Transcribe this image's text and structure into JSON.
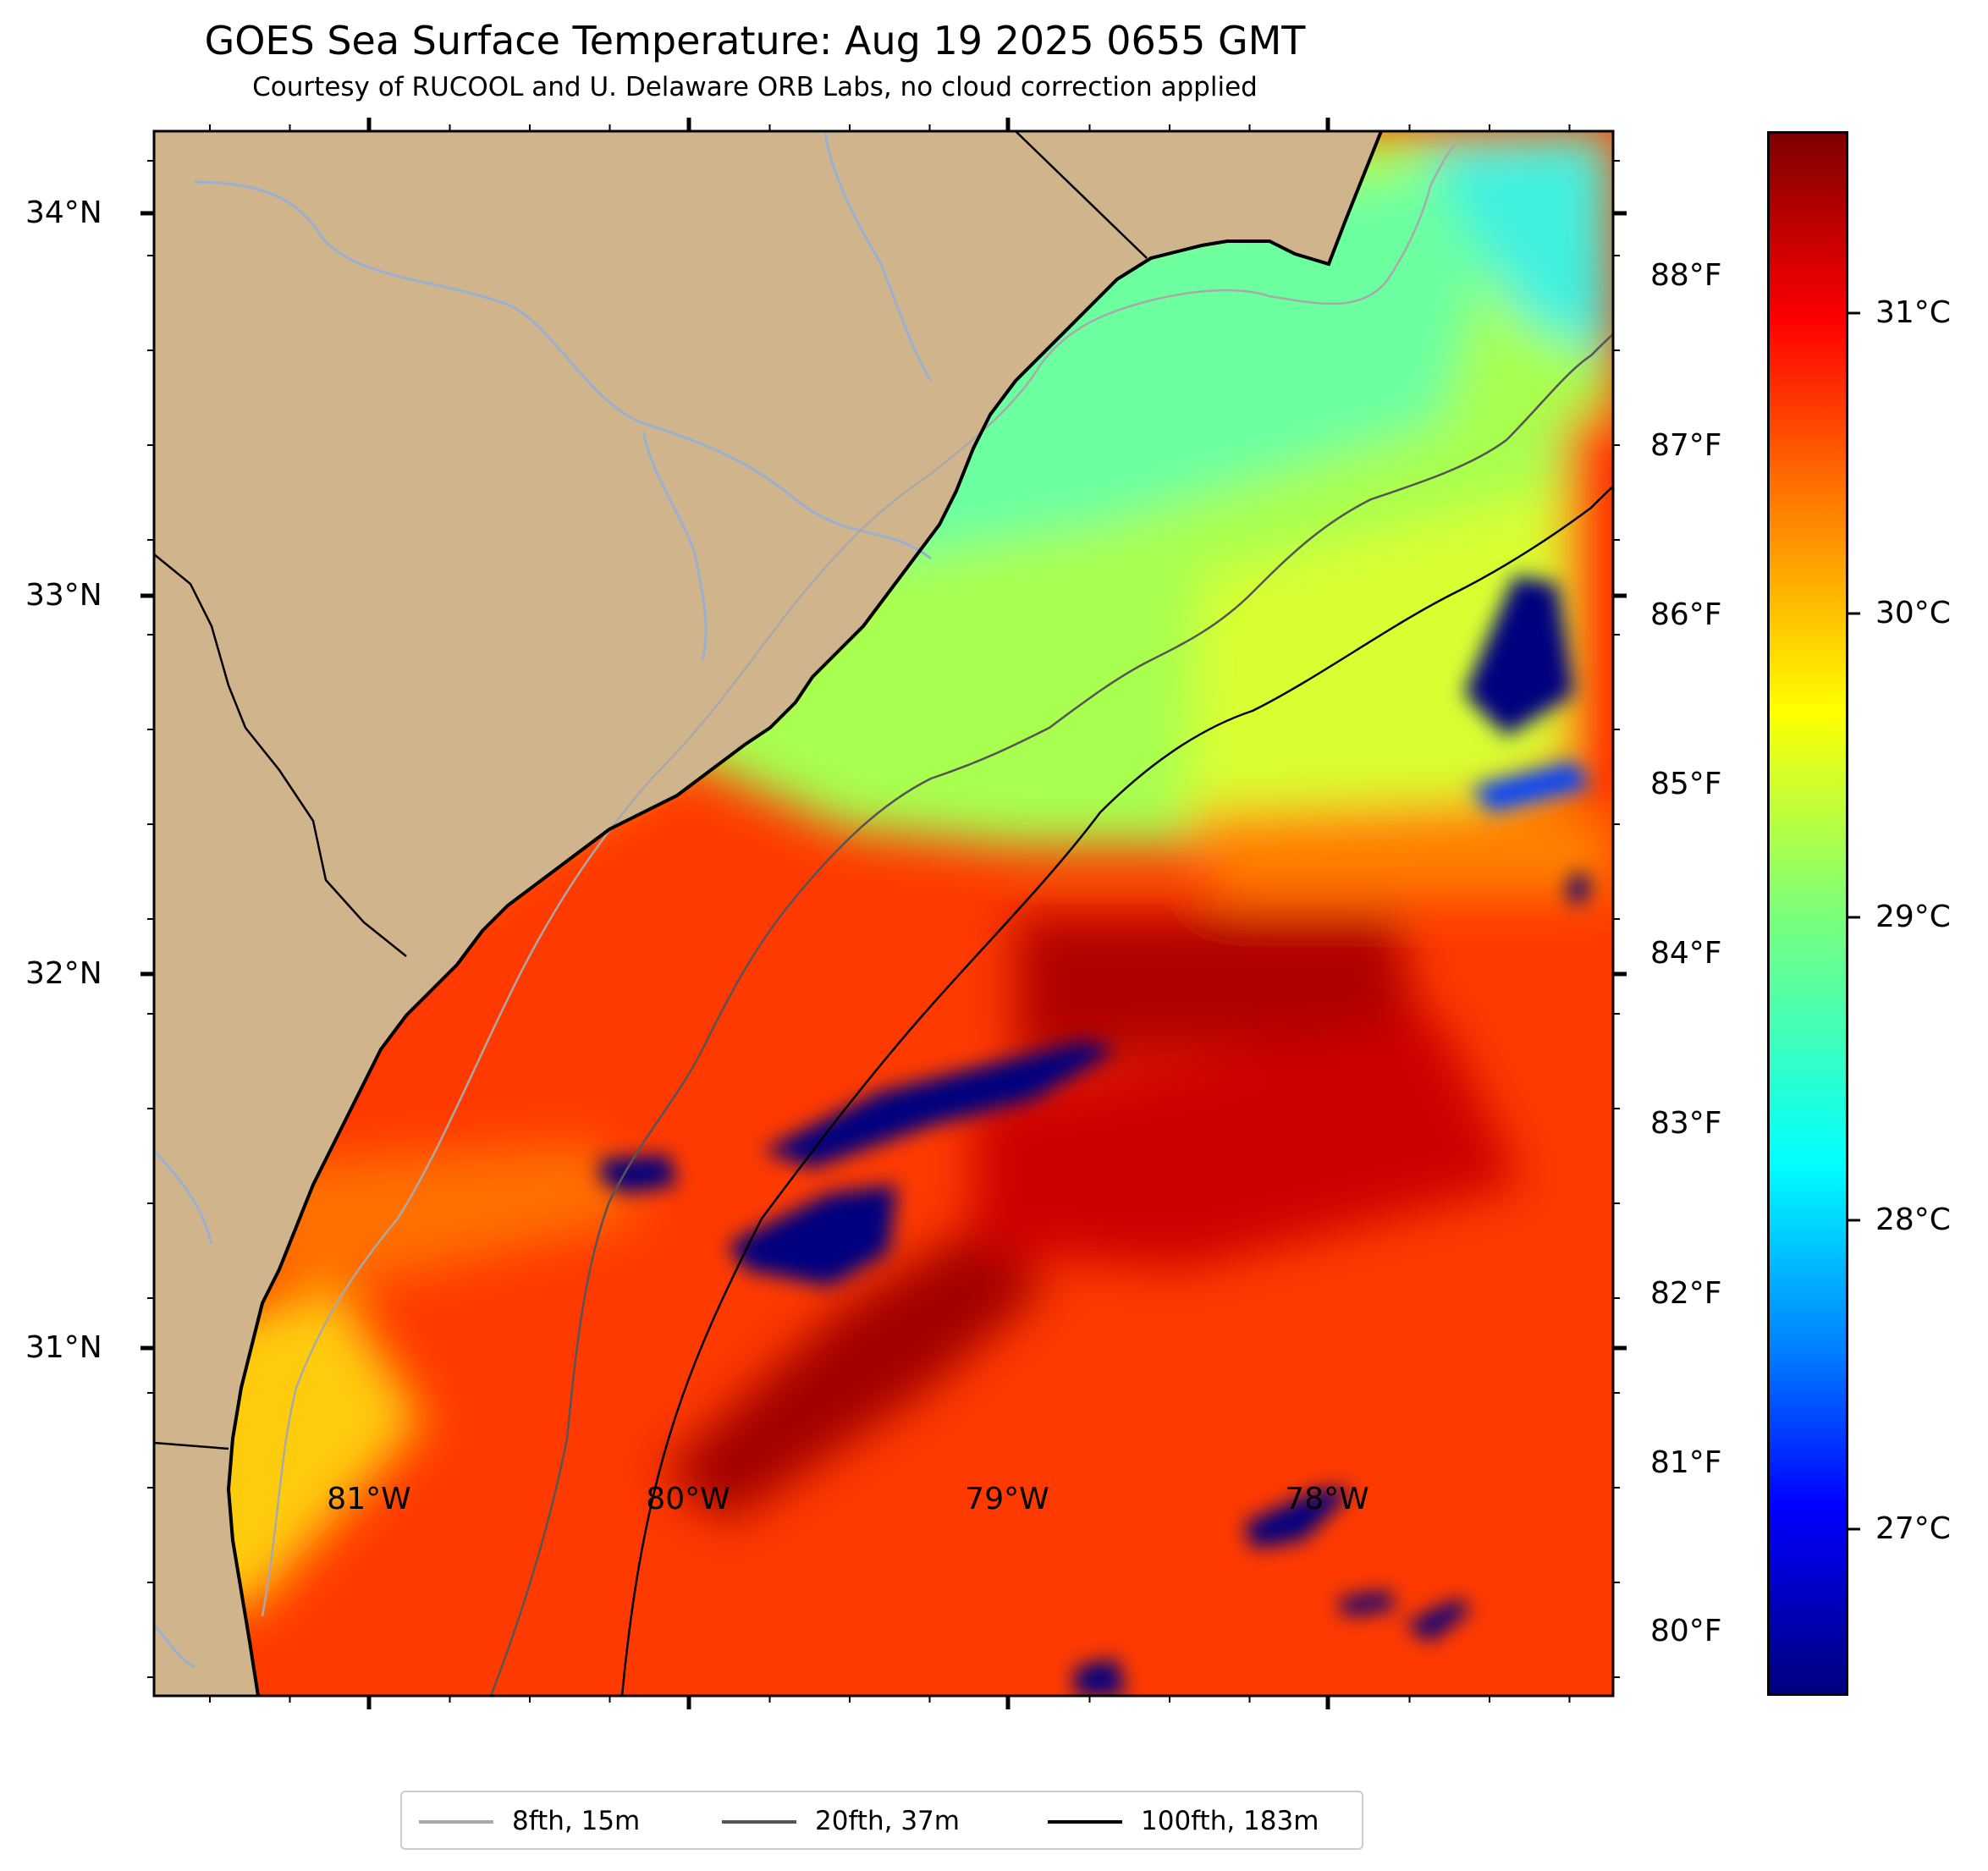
{
  "title": "GOES Sea Surface Temperature: Aug 19 2025 0655 GMT",
  "subtitle": "Courtesy of RUCOOL and U. Delaware ORB Labs, no cloud correction applied",
  "map": {
    "type": "heatmap",
    "region": "South Carolina / Georgia coast",
    "lat_labels": [
      "34°N",
      "33°N",
      "32°N",
      "31°N"
    ],
    "lon_labels": [
      "81°W",
      "80°W",
      "79°W",
      "78°W"
    ],
    "lat_range": [
      30.2,
      34.2
    ],
    "lon_range": [
      -81.65,
      -77.1
    ],
    "land_color": "#d0b48c",
    "icons": [
      "coastline",
      "state-border",
      "river"
    ]
  },
  "colorbar": {
    "fahrenheit_labels": [
      "88°F",
      "87°F",
      "86°F",
      "85°F",
      "84°F",
      "83°F",
      "82°F",
      "81°F",
      "80°F"
    ],
    "celsius_labels": [
      "31°C",
      "30°C",
      "29°C",
      "28°C",
      "27°C"
    ],
    "colormap": "jet",
    "range_c": [
      26.5,
      31.7
    ]
  },
  "legend": {
    "items": [
      {
        "label": "8fth, 15m",
        "color": "#a9a9a9"
      },
      {
        "label": "20fth, 37m",
        "color": "#555555"
      },
      {
        "label": "100fth, 183m",
        "color": "#000000"
      }
    ]
  }
}
